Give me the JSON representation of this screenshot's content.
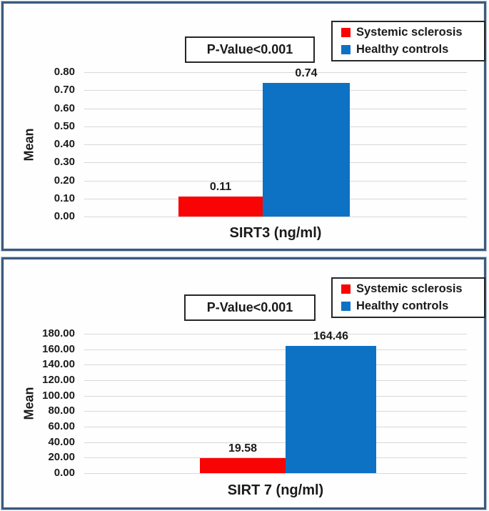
{
  "colors": {
    "systemic_sclerosis": "#f90404",
    "healthy_controls": "#0d72c4",
    "panel_border": "#3d5a7d",
    "gridline": "#d8d8d8",
    "text": "#1a1a1a"
  },
  "chart_data": [
    {
      "type": "bar",
      "xlabel": "SIRT3 (ng/ml)",
      "ylabel": "Mean",
      "annotation": "P-Value<0.001",
      "ylim": [
        0,
        0.8
      ],
      "ytick_labels": [
        "0.80",
        "0.70",
        "0.60",
        "0.50",
        "0.40",
        "0.30",
        "0.20",
        "0.10",
        "0.00"
      ],
      "grid": true,
      "legend_position": "top-right",
      "series": [
        {
          "name": "Systemic sclerosis",
          "value": 0.11,
          "data_label": "0.11",
          "color_key": "systemic_sclerosis"
        },
        {
          "name": "Healthy controls",
          "value": 0.74,
          "data_label": "0.74",
          "color_key": "healthy_controls"
        }
      ]
    },
    {
      "type": "bar",
      "xlabel": "SIRT 7 (ng/ml)",
      "ylabel": "Mean",
      "annotation": "P-Value<0.001",
      "ylim": [
        0,
        180
      ],
      "ytick_labels": [
        "180.00",
        "160.00",
        "140.00",
        "120.00",
        "100.00",
        "80.00",
        "60.00",
        "40.00",
        "20.00",
        "0.00"
      ],
      "grid": true,
      "legend_position": "top-right",
      "series": [
        {
          "name": "Systemic sclerosis",
          "value": 19.58,
          "data_label": "19.58",
          "color_key": "systemic_sclerosis"
        },
        {
          "name": "Healthy controls",
          "value": 164.46,
          "data_label": "164.46",
          "color_key": "healthy_controls"
        }
      ]
    }
  ]
}
